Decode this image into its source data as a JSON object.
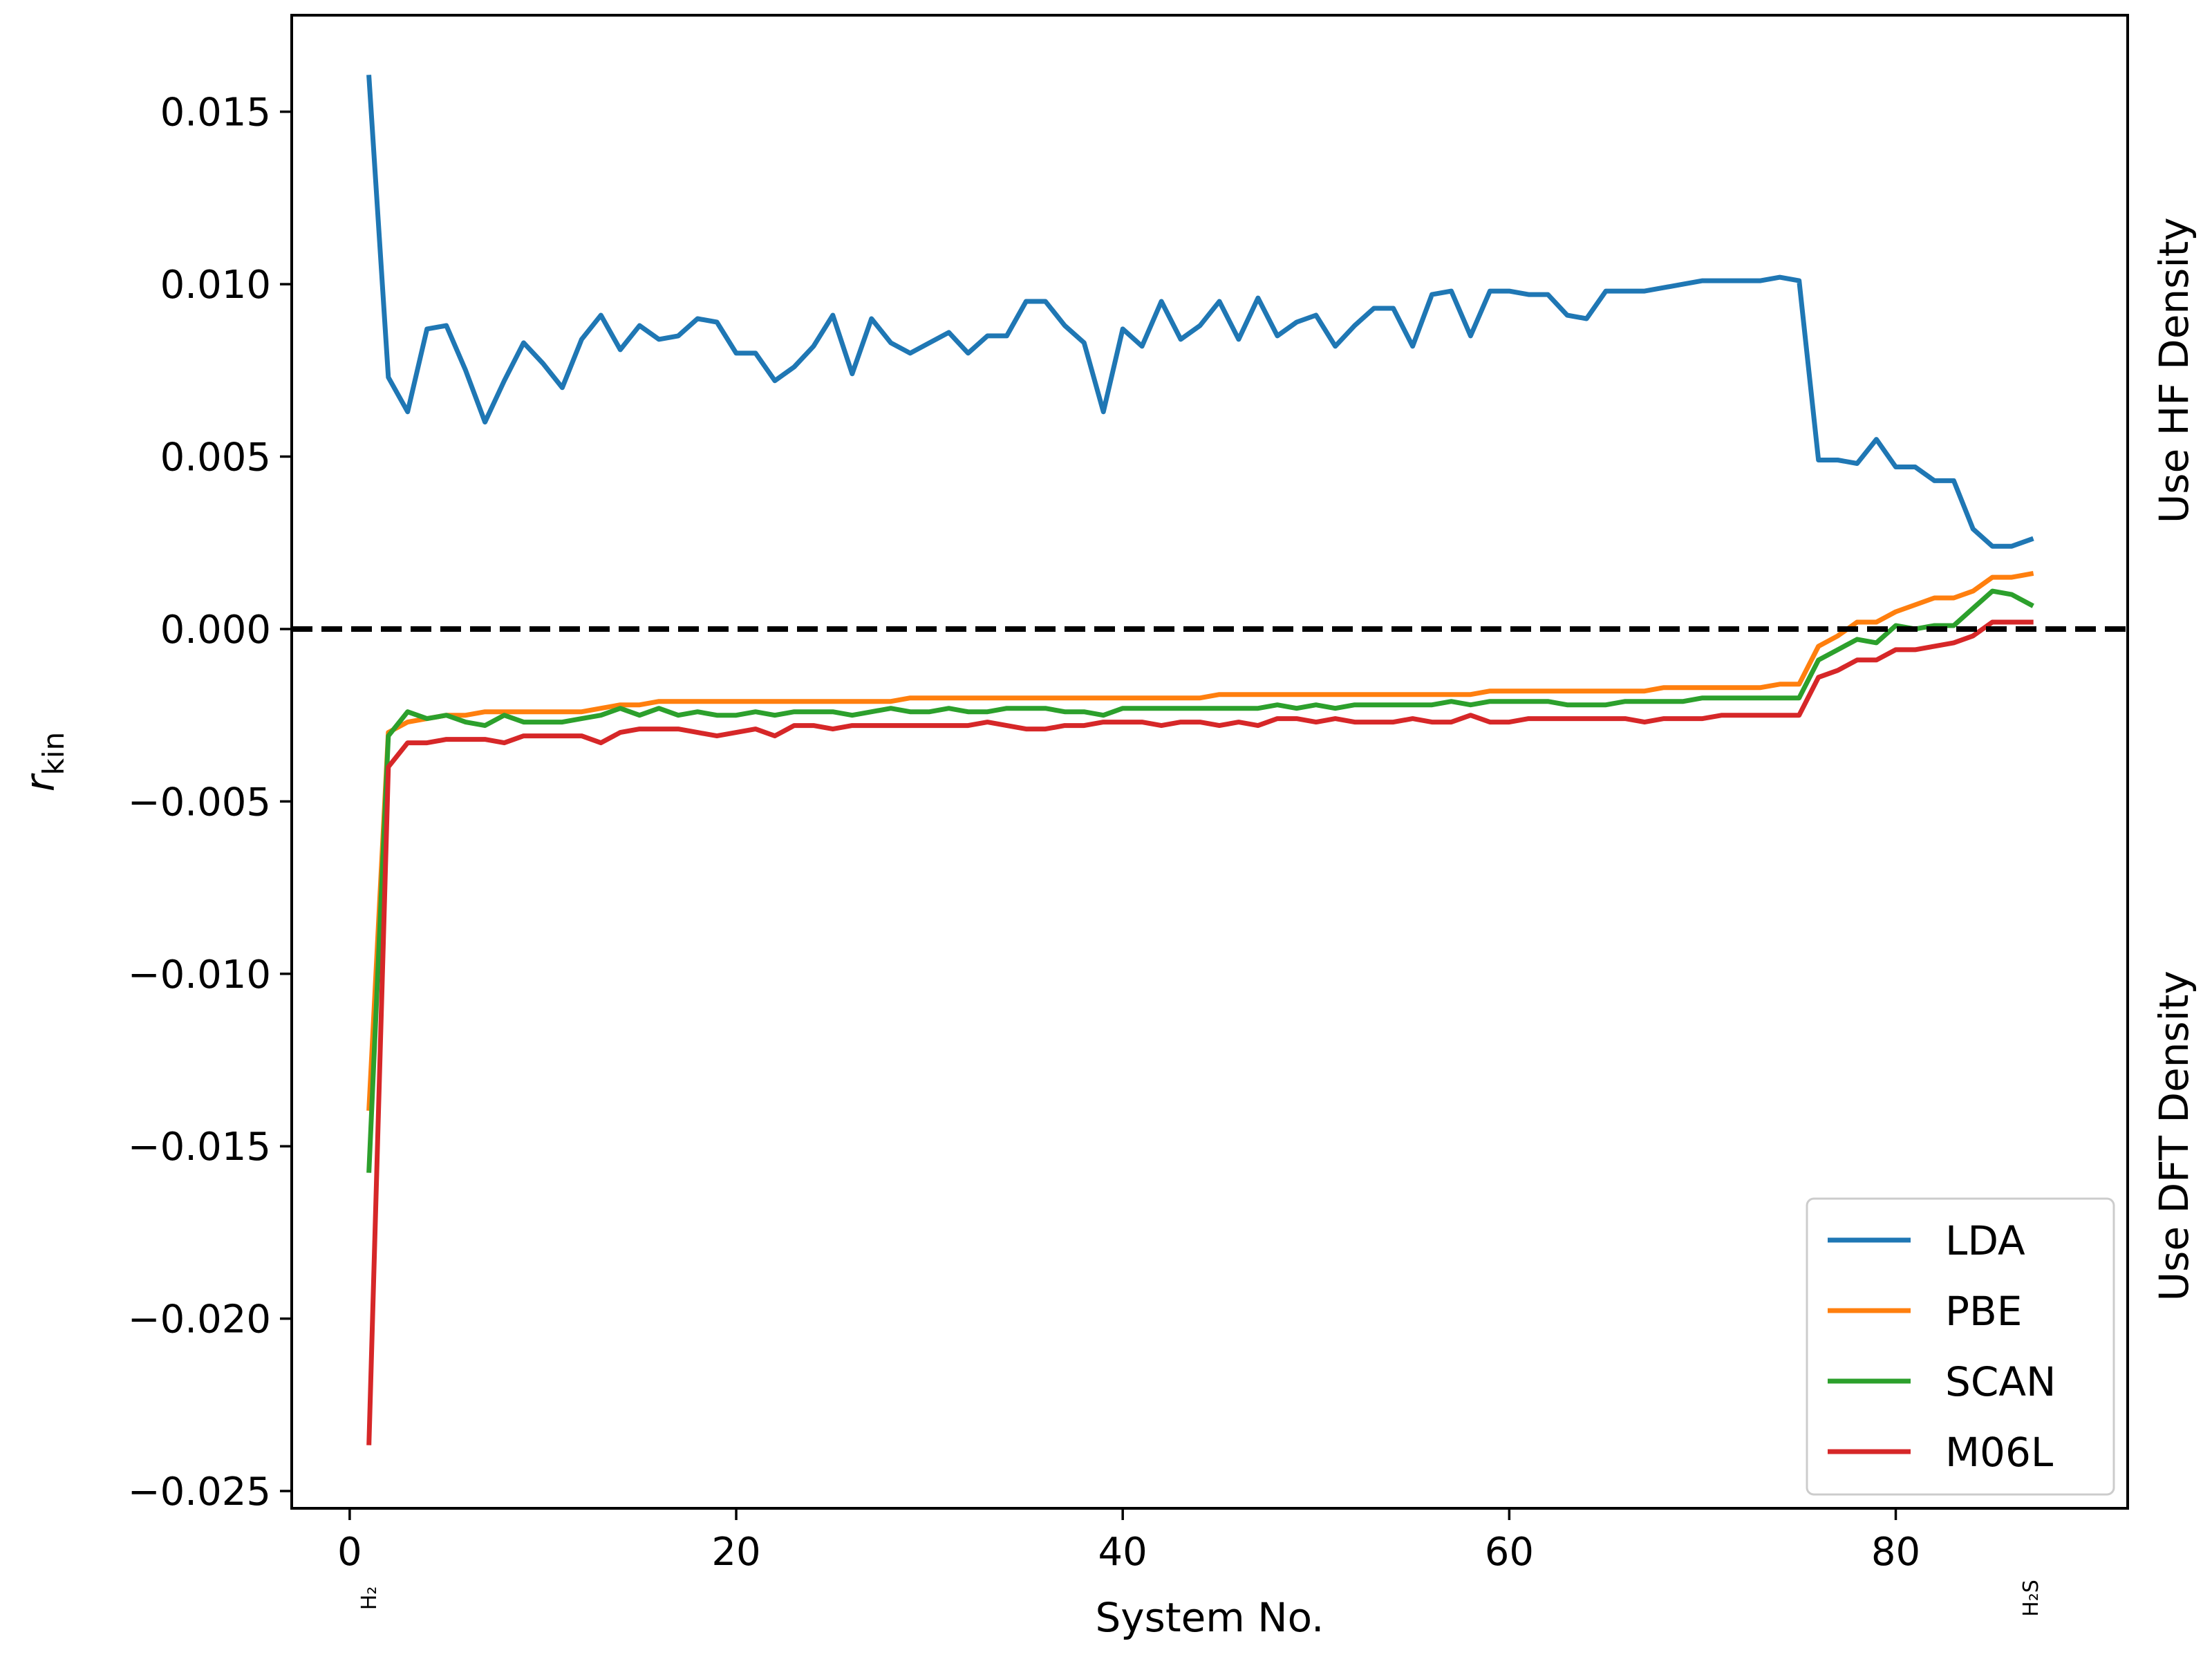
{
  "chart_data": {
    "type": "line",
    "xlabel": "System No.",
    "ylabel_main": "r",
    "ylabel_sub": "kin",
    "xlim": [
      -3,
      92
    ],
    "ylim": [
      -0.0255,
      0.0178
    ],
    "x_ticks": [
      0,
      20,
      40,
      60,
      80
    ],
    "x_tick_labels": [
      "0",
      "20",
      "40",
      "60",
      "80"
    ],
    "y_ticks": [
      0.015,
      0.01,
      0.005,
      0.0,
      -0.005,
      -0.01,
      -0.015,
      -0.02,
      -0.025
    ],
    "y_tick_labels": [
      "0.015",
      "0.010",
      "0.005",
      "0.000",
      "−0.005",
      "−0.010",
      "−0.015",
      "−0.020",
      "−0.025"
    ],
    "molecule_labels": [
      {
        "x": 1,
        "label": "H₂"
      },
      {
        "x": 87,
        "label": "H₂S"
      }
    ],
    "side_labels": {
      "top": "Use HF Density",
      "bottom": "Use DFT Density"
    },
    "reference_line": {
      "y": 0.0,
      "style": "dashed",
      "color": "#000000"
    },
    "legend_position": "lower-right",
    "grid": false,
    "series": [
      {
        "name": "LDA",
        "color": "#1f77b4",
        "x": [
          1,
          2,
          3,
          4,
          5,
          6,
          7,
          8,
          9,
          10,
          11,
          12,
          13,
          14,
          15,
          16,
          17,
          18,
          19,
          20,
          21,
          22,
          23,
          24,
          25,
          26,
          27,
          28,
          29,
          30,
          31,
          32,
          33,
          34,
          35,
          36,
          37,
          38,
          39,
          40,
          41,
          42,
          43,
          44,
          45,
          46,
          47,
          48,
          49,
          50,
          51,
          52,
          53,
          54,
          55,
          56,
          57,
          58,
          59,
          60,
          61,
          62,
          63,
          64,
          65,
          66,
          67,
          68,
          69,
          70,
          71,
          72,
          73,
          74,
          75,
          76,
          77,
          78,
          79,
          80,
          81,
          82,
          83,
          84,
          85,
          86,
          87
        ],
        "y": [
          0.016,
          0.0073,
          0.0063,
          0.0087,
          0.0088,
          0.0075,
          0.006,
          0.0072,
          0.0083,
          0.0077,
          0.007,
          0.0084,
          0.0091,
          0.0081,
          0.0088,
          0.0084,
          0.0085,
          0.009,
          0.0089,
          0.008,
          0.008,
          0.0072,
          0.0076,
          0.0082,
          0.0091,
          0.0074,
          0.009,
          0.0083,
          0.008,
          0.0083,
          0.0086,
          0.008,
          0.0085,
          0.0085,
          0.0095,
          0.0095,
          0.0088,
          0.0083,
          0.0063,
          0.0087,
          0.0082,
          0.0095,
          0.0084,
          0.0088,
          0.0095,
          0.0084,
          0.0096,
          0.0085,
          0.0089,
          0.0091,
          0.0082,
          0.0088,
          0.0093,
          0.0093,
          0.0082,
          0.0097,
          0.0098,
          0.0085,
          0.0098,
          0.0098,
          0.0097,
          0.0097,
          0.0091,
          0.009,
          0.0098,
          0.0098,
          0.0098,
          0.0099,
          0.01,
          0.0101,
          0.0101,
          0.0101,
          0.0101,
          0.0102,
          0.0101,
          0.0049,
          0.0049,
          0.0048,
          0.0055,
          0.0047,
          0.0047,
          0.0043,
          0.0043,
          0.0029,
          0.0024,
          0.0024,
          0.0026
        ]
      },
      {
        "name": "PBE",
        "color": "#ff7f0e",
        "x": [
          1,
          2,
          3,
          4,
          5,
          6,
          7,
          8,
          9,
          10,
          11,
          12,
          13,
          14,
          15,
          16,
          17,
          18,
          19,
          20,
          21,
          22,
          23,
          24,
          25,
          26,
          27,
          28,
          29,
          30,
          31,
          32,
          33,
          34,
          35,
          36,
          37,
          38,
          39,
          40,
          41,
          42,
          43,
          44,
          45,
          46,
          47,
          48,
          49,
          50,
          51,
          52,
          53,
          54,
          55,
          56,
          57,
          58,
          59,
          60,
          61,
          62,
          63,
          64,
          65,
          66,
          67,
          68,
          69,
          70,
          71,
          72,
          73,
          74,
          75,
          76,
          77,
          78,
          79,
          80,
          81,
          82,
          83,
          84,
          85,
          86,
          87
        ],
        "y": [
          -0.0139,
          -0.003,
          -0.0027,
          -0.0026,
          -0.0025,
          -0.0025,
          -0.0024,
          -0.0024,
          -0.0024,
          -0.0024,
          -0.0024,
          -0.0024,
          -0.0023,
          -0.0022,
          -0.0022,
          -0.0021,
          -0.0021,
          -0.0021,
          -0.0021,
          -0.0021,
          -0.0021,
          -0.0021,
          -0.0021,
          -0.0021,
          -0.0021,
          -0.0021,
          -0.0021,
          -0.0021,
          -0.002,
          -0.002,
          -0.002,
          -0.002,
          -0.002,
          -0.002,
          -0.002,
          -0.002,
          -0.002,
          -0.002,
          -0.002,
          -0.002,
          -0.002,
          -0.002,
          -0.002,
          -0.002,
          -0.0019,
          -0.0019,
          -0.0019,
          -0.0019,
          -0.0019,
          -0.0019,
          -0.0019,
          -0.0019,
          -0.0019,
          -0.0019,
          -0.0019,
          -0.0019,
          -0.0019,
          -0.0019,
          -0.0018,
          -0.0018,
          -0.0018,
          -0.0018,
          -0.0018,
          -0.0018,
          -0.0018,
          -0.0018,
          -0.0018,
          -0.0017,
          -0.0017,
          -0.0017,
          -0.0017,
          -0.0017,
          -0.0017,
          -0.0016,
          -0.0016,
          -0.0005,
          -0.0002,
          0.0002,
          0.0002,
          0.0005,
          0.0007,
          0.0009,
          0.0009,
          0.0011,
          0.0015,
          0.0015,
          0.0016
        ]
      },
      {
        "name": "SCAN",
        "color": "#2ca02c",
        "x": [
          1,
          2,
          3,
          4,
          5,
          6,
          7,
          8,
          9,
          10,
          11,
          12,
          13,
          14,
          15,
          16,
          17,
          18,
          19,
          20,
          21,
          22,
          23,
          24,
          25,
          26,
          27,
          28,
          29,
          30,
          31,
          32,
          33,
          34,
          35,
          36,
          37,
          38,
          39,
          40,
          41,
          42,
          43,
          44,
          45,
          46,
          47,
          48,
          49,
          50,
          51,
          52,
          53,
          54,
          55,
          56,
          57,
          58,
          59,
          60,
          61,
          62,
          63,
          64,
          65,
          66,
          67,
          68,
          69,
          70,
          71,
          72,
          73,
          74,
          75,
          76,
          77,
          78,
          79,
          80,
          81,
          82,
          83,
          84,
          85,
          86,
          87
        ],
        "y": [
          -0.0157,
          -0.0031,
          -0.0024,
          -0.0026,
          -0.0025,
          -0.0027,
          -0.0028,
          -0.0025,
          -0.0027,
          -0.0027,
          -0.0027,
          -0.0026,
          -0.0025,
          -0.0023,
          -0.0025,
          -0.0023,
          -0.0025,
          -0.0024,
          -0.0025,
          -0.0025,
          -0.0024,
          -0.0025,
          -0.0024,
          -0.0024,
          -0.0024,
          -0.0025,
          -0.0024,
          -0.0023,
          -0.0024,
          -0.0024,
          -0.0023,
          -0.0024,
          -0.0024,
          -0.0023,
          -0.0023,
          -0.0023,
          -0.0024,
          -0.0024,
          -0.0025,
          -0.0023,
          -0.0023,
          -0.0023,
          -0.0023,
          -0.0023,
          -0.0023,
          -0.0023,
          -0.0023,
          -0.0022,
          -0.0023,
          -0.0022,
          -0.0023,
          -0.0022,
          -0.0022,
          -0.0022,
          -0.0022,
          -0.0022,
          -0.0021,
          -0.0022,
          -0.0021,
          -0.0021,
          -0.0021,
          -0.0021,
          -0.0022,
          -0.0022,
          -0.0022,
          -0.0021,
          -0.0021,
          -0.0021,
          -0.0021,
          -0.002,
          -0.002,
          -0.002,
          -0.002,
          -0.002,
          -0.002,
          -0.0009,
          -0.0006,
          -0.0003,
          -0.0004,
          0.0001,
          0.0,
          0.0001,
          0.0001,
          0.0006,
          0.0011,
          0.001,
          0.0007
        ]
      },
      {
        "name": "M06L",
        "color": "#d62728",
        "x": [
          1,
          2,
          3,
          4,
          5,
          6,
          7,
          8,
          9,
          10,
          11,
          12,
          13,
          14,
          15,
          16,
          17,
          18,
          19,
          20,
          21,
          22,
          23,
          24,
          25,
          26,
          27,
          28,
          29,
          30,
          31,
          32,
          33,
          34,
          35,
          36,
          37,
          38,
          39,
          40,
          41,
          42,
          43,
          44,
          45,
          46,
          47,
          48,
          49,
          50,
          51,
          52,
          53,
          54,
          55,
          56,
          57,
          58,
          59,
          60,
          61,
          62,
          63,
          64,
          65,
          66,
          67,
          68,
          69,
          70,
          71,
          72,
          73,
          74,
          75,
          76,
          77,
          78,
          79,
          80,
          81,
          82,
          83,
          84,
          85,
          86,
          87
        ],
        "y": [
          -0.0236,
          -0.004,
          -0.0033,
          -0.0033,
          -0.0032,
          -0.0032,
          -0.0032,
          -0.0033,
          -0.0031,
          -0.0031,
          -0.0031,
          -0.0031,
          -0.0033,
          -0.003,
          -0.0029,
          -0.0029,
          -0.0029,
          -0.003,
          -0.0031,
          -0.003,
          -0.0029,
          -0.0031,
          -0.0028,
          -0.0028,
          -0.0029,
          -0.0028,
          -0.0028,
          -0.0028,
          -0.0028,
          -0.0028,
          -0.0028,
          -0.0028,
          -0.0027,
          -0.0028,
          -0.0029,
          -0.0029,
          -0.0028,
          -0.0028,
          -0.0027,
          -0.0027,
          -0.0027,
          -0.0028,
          -0.0027,
          -0.0027,
          -0.0028,
          -0.0027,
          -0.0028,
          -0.0026,
          -0.0026,
          -0.0027,
          -0.0026,
          -0.0027,
          -0.0027,
          -0.0027,
          -0.0026,
          -0.0027,
          -0.0027,
          -0.0025,
          -0.0027,
          -0.0027,
          -0.0026,
          -0.0026,
          -0.0026,
          -0.0026,
          -0.0026,
          -0.0026,
          -0.0027,
          -0.0026,
          -0.0026,
          -0.0026,
          -0.0025,
          -0.0025,
          -0.0025,
          -0.0025,
          -0.0025,
          -0.0014,
          -0.0012,
          -0.0009,
          -0.0009,
          -0.0006,
          -0.0006,
          -0.0005,
          -0.0004,
          -0.0002,
          0.0002,
          0.0002,
          0.0002
        ]
      }
    ]
  }
}
